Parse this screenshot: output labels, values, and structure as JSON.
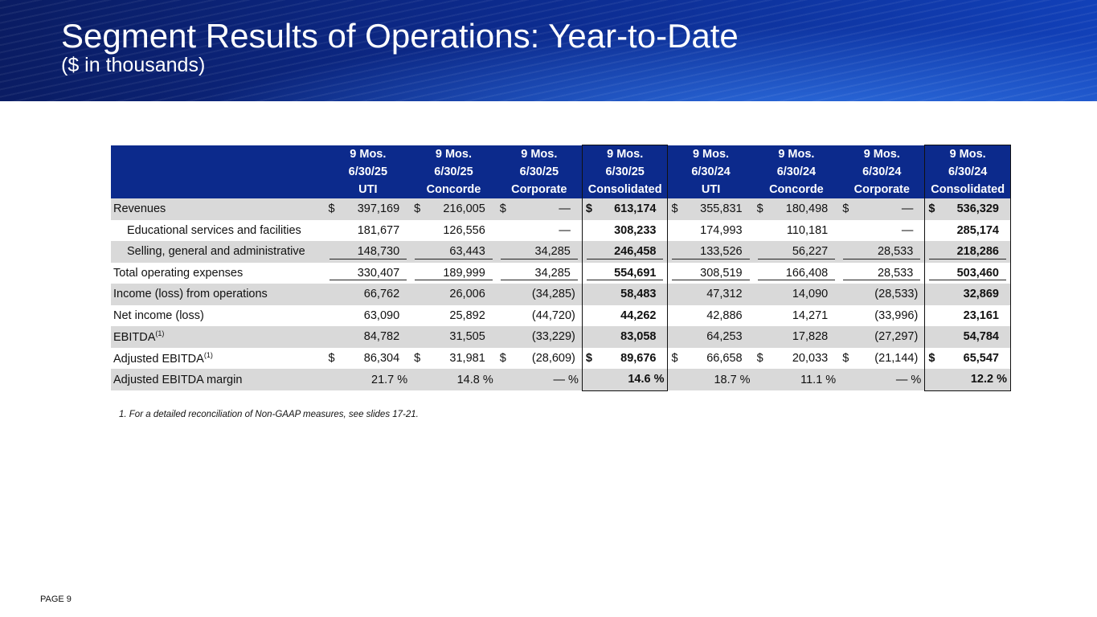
{
  "title": "Segment Results of Operations: Year-to-Date",
  "subtitle": "($ in thousands)",
  "columns": [
    {
      "period": "9 Mos.",
      "date": "6/30/25",
      "segment": "UTI"
    },
    {
      "period": "9 Mos.",
      "date": "6/30/25",
      "segment": "Concorde"
    },
    {
      "period": "9 Mos.",
      "date": "6/30/25",
      "segment": "Corporate"
    },
    {
      "period": "9 Mos.",
      "date": "6/30/25",
      "segment": "Consolidated"
    },
    {
      "period": "9 Mos.",
      "date": "6/30/24",
      "segment": "UTI"
    },
    {
      "period": "9 Mos.",
      "date": "6/30/24",
      "segment": "Concorde"
    },
    {
      "period": "9 Mos.",
      "date": "6/30/24",
      "segment": "Corporate"
    },
    {
      "period": "9 Mos.",
      "date": "6/30/24",
      "segment": "Consolidated"
    }
  ],
  "rows": [
    {
      "label": "Revenues",
      "values": [
        "397,169",
        "216,005",
        "—",
        "613,174",
        "355,831",
        "180,498",
        "—",
        "536,329"
      ]
    },
    {
      "label": "Educational services and facilities",
      "values": [
        "181,677",
        "126,556",
        "—",
        "308,233",
        "174,993",
        "110,181",
        "—",
        "285,174"
      ]
    },
    {
      "label": "Selling, general and administrative",
      "values": [
        "148,730",
        "63,443",
        "34,285",
        "246,458",
        "133,526",
        "56,227",
        "28,533",
        "218,286"
      ]
    },
    {
      "label": "Total operating expenses",
      "values": [
        "330,407",
        "189,999",
        "34,285",
        "554,691",
        "308,519",
        "166,408",
        "28,533",
        "503,460"
      ]
    },
    {
      "label": "Income (loss) from operations",
      "values": [
        "66,762",
        "26,006",
        "(34,285)",
        "58,483",
        "47,312",
        "14,090",
        "(28,533)",
        "32,869"
      ]
    },
    {
      "label": "Net income (loss)",
      "values": [
        "63,090",
        "25,892",
        "(44,720)",
        "44,262",
        "42,886",
        "14,271",
        "(33,996)",
        "23,161"
      ]
    },
    {
      "label": "EBITDA",
      "footnote_ref": "(1)",
      "values": [
        "84,782",
        "31,505",
        "(33,229)",
        "83,058",
        "64,253",
        "17,828",
        "(27,297)",
        "54,784"
      ]
    },
    {
      "label": "Adjusted EBITDA",
      "footnote_ref": "(1)",
      "values": [
        "86,304",
        "31,981",
        "(28,609)",
        "89,676",
        "66,658",
        "20,033",
        "(21,144)",
        "65,547"
      ]
    },
    {
      "label": "Adjusted EBITDA margin",
      "values": [
        "21.7 %",
        "14.8 %",
        "— %",
        "14.6 %",
        "18.7 %",
        "11.1 %",
        "— %",
        "12.2 %"
      ]
    }
  ],
  "currency_symbol": "$",
  "footnote": "1.    For a detailed reconciliation of Non-GAAP measures, see slides 17-21.",
  "page_label": "PAGE 9"
}
